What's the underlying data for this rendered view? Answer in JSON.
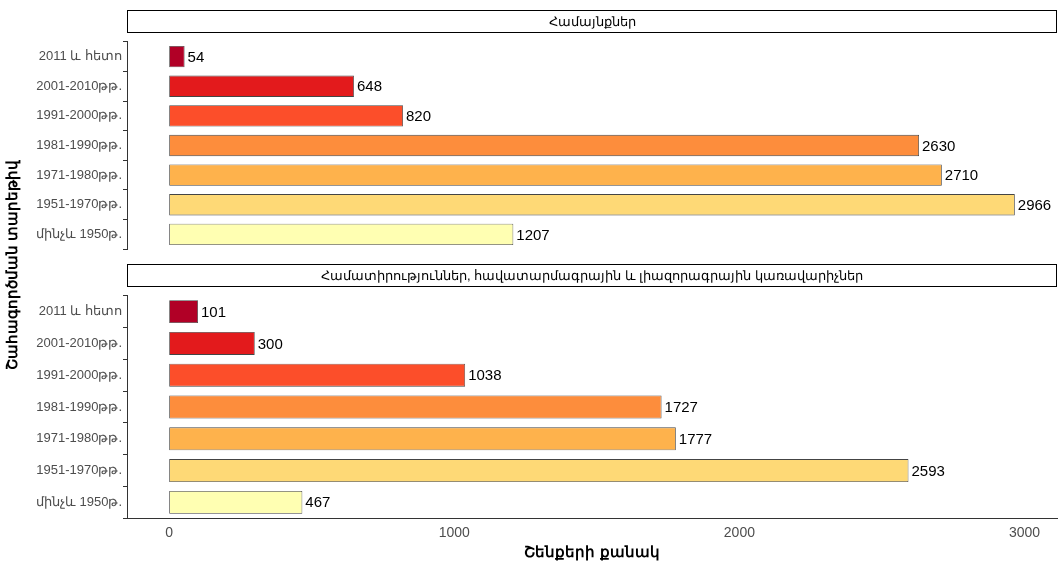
{
  "chart_data": [
    {
      "type": "bar",
      "orientation": "horizontal",
      "title": "Համայնքներ",
      "ylabel": "Շահագործման տարեթիվ",
      "categories": [
        "2011 և հետո",
        "2001-2010թթ.",
        "1991-2000թթ.",
        "1981-1990թթ.",
        "1971-1980թթ.",
        "1951-1970թթ.",
        "մինչև 1950թ."
      ],
      "values": [
        54,
        648,
        820,
        2630,
        2710,
        2966,
        1207
      ],
      "colors": [
        "#b10026",
        "#e31a1c",
        "#fc4e2a",
        "#fd8d3c",
        "#feb24c",
        "#fed976",
        "#ffffb2"
      ],
      "xlim": [
        -148,
        3114
      ],
      "xticks": [
        0,
        1000,
        2000,
        3000
      ],
      "tick_labels": "y",
      "data_labels": true
    },
    {
      "type": "bar",
      "orientation": "horizontal",
      "title": "Համատիրություններ, հավատարմագրային և լիազորագրային կառավարիչներ",
      "xlabel": "Շենքերի քանակ",
      "categories": [
        "2011 և հետո",
        "2001-2010թթ.",
        "1991-2000թթ.",
        "1981-1990թթ.",
        "1971-1980թթ.",
        "1951-1970թթ.",
        "մինչև 1950թ."
      ],
      "values": [
        101,
        300,
        1038,
        1727,
        1777,
        2593,
        467
      ],
      "colors": [
        "#b10026",
        "#e31a1c",
        "#fc4e2a",
        "#fd8d3c",
        "#feb24c",
        "#fed976",
        "#ffffb2"
      ],
      "xlim": [
        -148,
        3114
      ],
      "xticks": [
        0,
        1000,
        2000,
        3000
      ],
      "data_labels": true
    }
  ]
}
